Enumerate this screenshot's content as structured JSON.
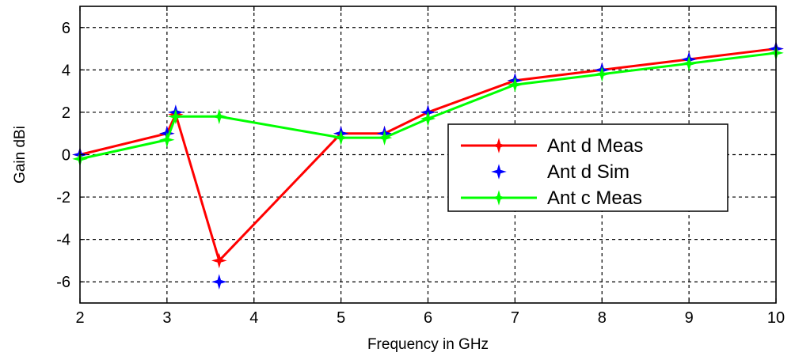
{
  "chart_data": {
    "type": "line",
    "title": "",
    "xlabel": "Frequency in GHz",
    "ylabel": "Gain dBi",
    "xlim": [
      2,
      10
    ],
    "ylim": [
      -7,
      7
    ],
    "xticks": [
      2,
      3,
      4,
      5,
      6,
      7,
      8,
      9,
      10
    ],
    "yticks": [
      -6,
      -4,
      -2,
      0,
      2,
      4,
      6
    ],
    "grid": true,
    "legend_position": "center-right",
    "series": [
      {
        "name": "Ant d Meas",
        "color": "#ff0000",
        "style": "line-marker",
        "x": [
          2,
          3,
          3.1,
          3.6,
          5,
          5.5,
          6,
          7,
          8,
          9,
          10
        ],
        "y": [
          0,
          1,
          1.9,
          -5,
          1,
          1,
          2,
          3.5,
          4,
          4.5,
          5
        ]
      },
      {
        "name": "Ant d Sim",
        "color": "#0000ff",
        "style": "marker",
        "x": [
          2,
          3,
          3.1,
          3.6,
          5,
          5.5,
          6,
          7,
          8,
          9,
          10
        ],
        "y": [
          0,
          1,
          2,
          -6,
          1,
          1,
          2,
          3.5,
          4,
          4.5,
          5
        ]
      },
      {
        "name": "Ant c Meas",
        "color": "#00ff00",
        "style": "line-marker",
        "x": [
          2,
          3,
          3.1,
          3.6,
          5,
          5.5,
          6,
          7,
          8,
          9,
          10
        ],
        "y": [
          -0.2,
          0.7,
          1.8,
          1.8,
          0.8,
          0.8,
          1.7,
          3.3,
          3.8,
          4.3,
          4.8
        ]
      }
    ]
  }
}
